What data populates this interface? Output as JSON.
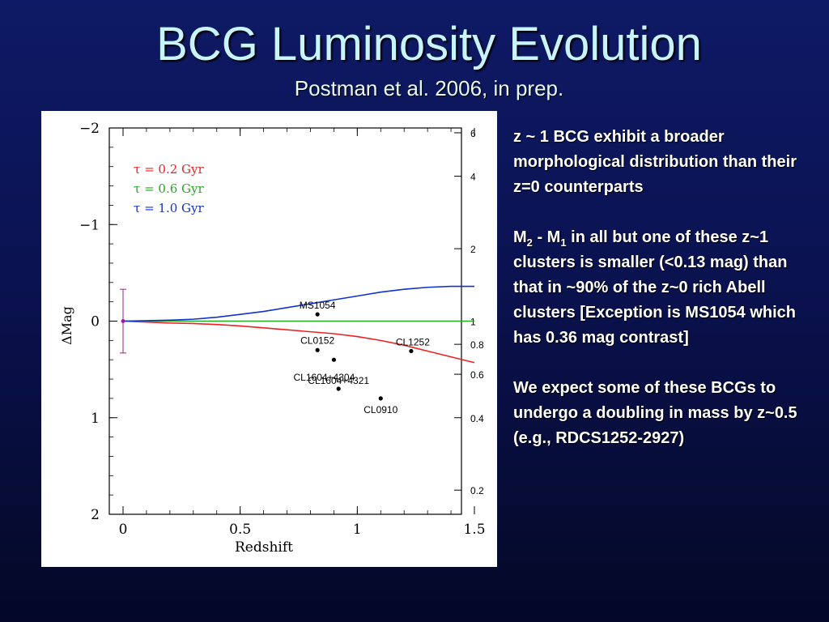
{
  "slide": {
    "title": "BCG Luminosity Evolution",
    "subtitle": "Postman et al. 2006, in prep.",
    "paragraph1": "z ~ 1 BCG exhibit a broader morphological distribution than their z=0 counterparts",
    "paragraph2": {
      "m2": "M",
      "sub2": "2",
      "dash": " - M",
      "sub1": "1",
      "rest": " in all but one of these z~1 clusters is smaller (<0.13 mag) than that in ~90% of the z~0 rich Abell clusters [Exception is MS1054 which has 0.36 mag contrast]"
    },
    "paragraph3": "We expect some of these BCGs to undergo a doubling in mass by z~0.5 (e.g., RDCS1252-2927)"
  },
  "chart_data": {
    "type": "line",
    "xlabel": "Redshift",
    "ylabel": "ΔMag",
    "xlim": [
      0,
      1.5
    ],
    "ylim": [
      -2,
      2
    ],
    "y_inverted": true,
    "x_ticks": [
      0,
      0.5,
      1,
      1.5
    ],
    "x_tick_labels": [
      "0",
      "0.5",
      "1",
      "1.5"
    ],
    "y_ticks": [
      -2,
      -1,
      0,
      1,
      2
    ],
    "y_tick_labels": [
      "−2",
      "−1",
      "0",
      "1",
      "2"
    ],
    "right_axis_ticks": [
      {
        "label": "6",
        "dmag": -1.95
      },
      {
        "label": "4",
        "dmag": -1.5
      },
      {
        "label": "2",
        "dmag": -0.75
      },
      {
        "label": "1",
        "dmag": 0
      },
      {
        "label": "0.8",
        "dmag": 0.24
      },
      {
        "label": "0.6",
        "dmag": 0.55
      },
      {
        "label": "0.4",
        "dmag": 1.0
      },
      {
        "label": "0.2",
        "dmag": 1.75
      }
    ],
    "legend_position": "top-left",
    "legend": [
      {
        "label": "τ = 0.2 Gyr",
        "color": "#ee2222"
      },
      {
        "label": "τ = 0.6 Gyr",
        "color": "#22aa22"
      },
      {
        "label": "τ = 1.0 Gyr",
        "color": "#1133cc"
      }
    ],
    "series": [
      {
        "name": "τ = 0.2 Gyr",
        "color": "#ee2222",
        "x": [
          0,
          0.1,
          0.2,
          0.3,
          0.4,
          0.5,
          0.6,
          0.7,
          0.8,
          0.9,
          1.0,
          1.1,
          1.2,
          1.3,
          1.4,
          1.5
        ],
        "y": [
          0,
          0.01,
          0.02,
          0.025,
          0.035,
          0.05,
          0.07,
          0.09,
          0.11,
          0.13,
          0.16,
          0.2,
          0.25,
          0.31,
          0.37,
          0.43
        ]
      },
      {
        "name": "τ = 0.6 Gyr",
        "color": "#22aa22",
        "x": [
          0,
          1.5
        ],
        "y": [
          0,
          0
        ]
      },
      {
        "name": "τ = 1.0 Gyr",
        "color": "#1133cc",
        "x": [
          0,
          0.1,
          0.2,
          0.3,
          0.4,
          0.5,
          0.6,
          0.7,
          0.8,
          0.9,
          1.0,
          1.1,
          1.2,
          1.3,
          1.4,
          1.5
        ],
        "y": [
          0,
          -0.005,
          -0.01,
          -0.02,
          -0.04,
          -0.07,
          -0.1,
          -0.14,
          -0.18,
          -0.22,
          -0.26,
          -0.3,
          -0.33,
          -0.35,
          -0.36,
          -0.36
        ]
      }
    ],
    "points": [
      {
        "label": "MS1054",
        "x": 0.83,
        "y": -0.07
      },
      {
        "label": "CL0152",
        "x": 0.83,
        "y": 0.3
      },
      {
        "label": "CL1604+4304",
        "x": 0.9,
        "y": 0.4
      },
      {
        "label": "CL1604+4321",
        "x": 0.92,
        "y": 0.7
      },
      {
        "label": "CL0910",
        "x": 1.1,
        "y": 0.8
      },
      {
        "label": "CL1252",
        "x": 1.23,
        "y": 0.31
      }
    ],
    "errorbar": {
      "x": 0,
      "y": 0,
      "yerr": 0.33
    }
  }
}
